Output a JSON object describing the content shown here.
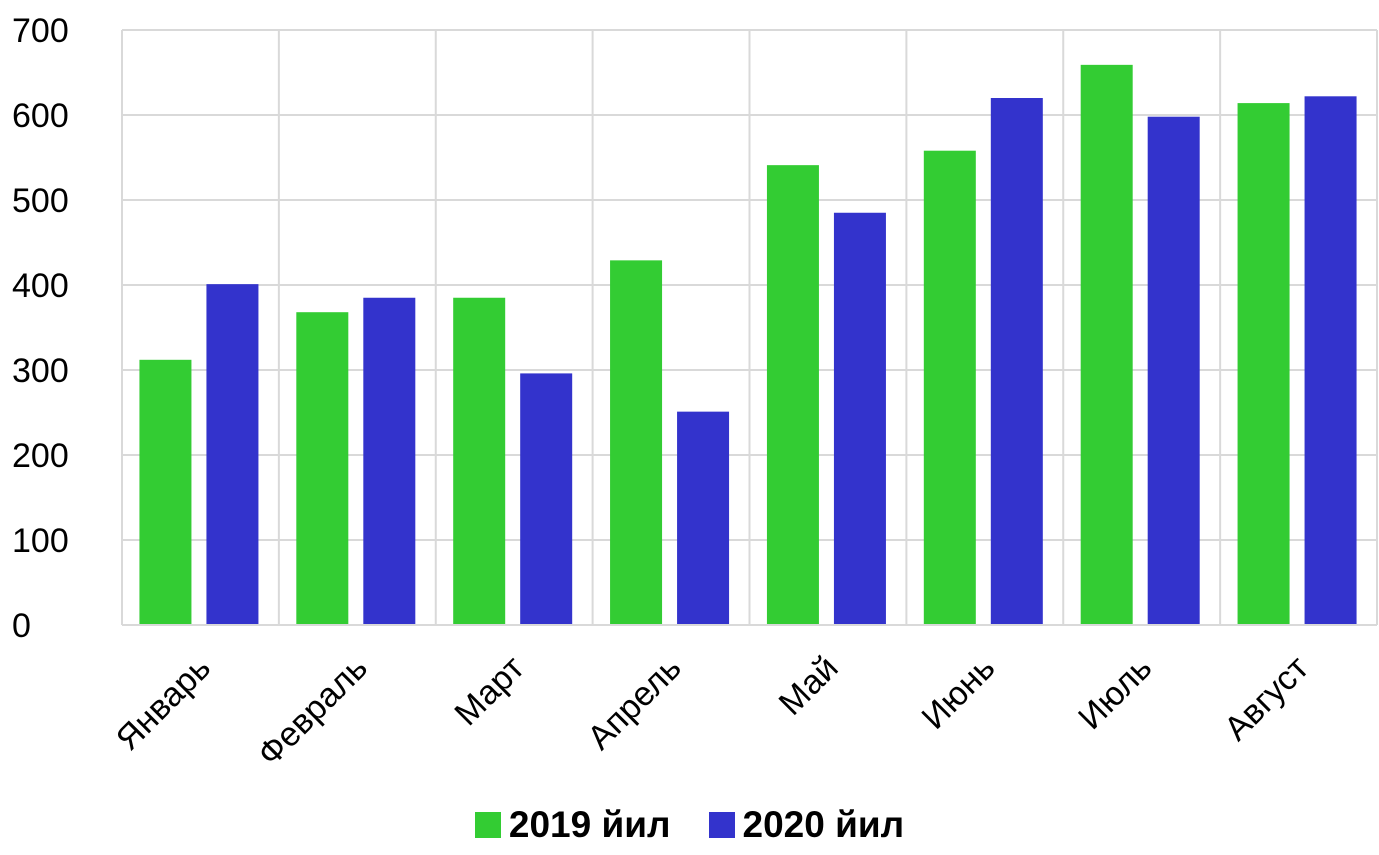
{
  "chart_data": {
    "type": "bar",
    "title": "",
    "xlabel": "",
    "ylabel": "",
    "categories": [
      "Январь",
      "Февраль",
      "Март",
      "Апрель",
      "Май",
      "Июнь",
      "Июль",
      "Август"
    ],
    "series": [
      {
        "name": "2019 йил",
        "color": "#33cc33",
        "values": [
          312,
          368,
          385,
          429,
          541,
          558,
          659,
          614
        ]
      },
      {
        "name": "2020 йил",
        "color": "#3333cc",
        "values": [
          401,
          385,
          296,
          251,
          485,
          620,
          598,
          622
        ]
      }
    ],
    "ylim": [
      0,
      700
    ],
    "yticks": [
      "0",
      "100",
      "200",
      "300",
      "400",
      "500",
      "600",
      "700"
    ],
    "grid": true,
    "legend_position": "bottom-center"
  }
}
